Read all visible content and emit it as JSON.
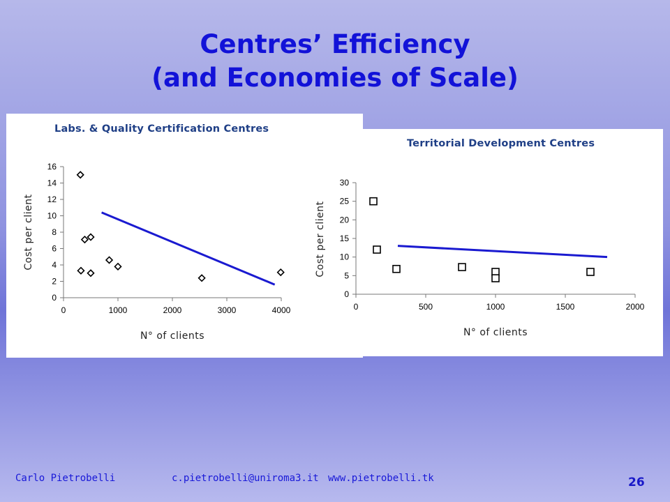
{
  "slide": {
    "title_line1": "Centres’ Efficiency",
    "title_line2": "(and Economies of Scale)",
    "footer_author": "Carlo Pietrobelli",
    "footer_email": "c.pietrobelli@uniroma3.it",
    "footer_url": "www.pietrobelli.tk",
    "page_number": "26"
  },
  "chart_data": [
    {
      "type": "scatter",
      "title": "Labs. & Quality Certification Centres",
      "xlabel": "N° of clients",
      "ylabel": "Cost per client",
      "xlim": [
        0,
        4000
      ],
      "ylim": [
        0,
        16
      ],
      "xticks": [
        0,
        1000,
        2000,
        3000,
        4000
      ],
      "yticks": [
        0,
        2,
        4,
        6,
        8,
        10,
        12,
        14,
        16
      ],
      "marker": "diamond",
      "grid": false,
      "points": [
        {
          "x": 310,
          "y": 15.0
        },
        {
          "x": 320,
          "y": 3.3
        },
        {
          "x": 390,
          "y": 7.1
        },
        {
          "x": 500,
          "y": 7.4
        },
        {
          "x": 500,
          "y": 3.0
        },
        {
          "x": 840,
          "y": 4.6
        },
        {
          "x": 1000,
          "y": 3.8
        },
        {
          "x": 2540,
          "y": 2.4
        },
        {
          "x": 3990,
          "y": 3.1
        }
      ],
      "trendline": {
        "x": [
          700,
          3880
        ],
        "y": [
          10.4,
          1.6
        ],
        "color": "#1a1ad0"
      }
    },
    {
      "type": "scatter",
      "title": "Territorial Development Centres",
      "xlabel": "N° of clients",
      "ylabel": "Cost per client",
      "xlim": [
        0,
        2000
      ],
      "ylim": [
        0,
        30
      ],
      "xticks": [
        0,
        500,
        1000,
        1500,
        2000
      ],
      "yticks": [
        0,
        5,
        10,
        15,
        20,
        25,
        30
      ],
      "marker": "square",
      "grid": false,
      "points": [
        {
          "x": 125,
          "y": 25.0
        },
        {
          "x": 150,
          "y": 12.0
        },
        {
          "x": 290,
          "y": 6.8
        },
        {
          "x": 760,
          "y": 7.3
        },
        {
          "x": 1000,
          "y": 6.0
        },
        {
          "x": 1000,
          "y": 4.3
        },
        {
          "x": 1680,
          "y": 6.0
        }
      ],
      "trendline": {
        "x": [
          300,
          1800
        ],
        "y": [
          13.0,
          10.0
        ],
        "color": "#1a1ad0"
      }
    }
  ]
}
